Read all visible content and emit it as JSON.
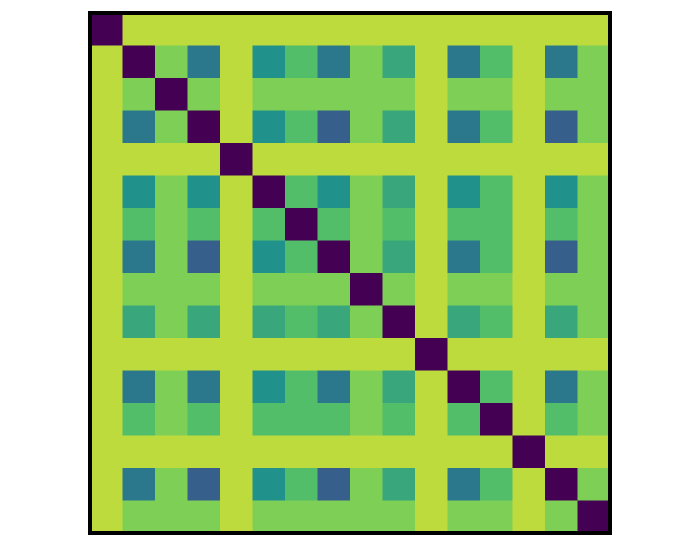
{
  "chart_data": {
    "type": "heatmap",
    "zlim": [
      0,
      1
    ],
    "colormap": [
      "#440154",
      "#3b528b",
      "#21918c",
      "#5ec962",
      "#fde725"
    ],
    "matrix": [
      [
        0,
        0.9,
        0.9,
        0.9,
        0.9,
        0.9,
        0.9,
        0.9,
        0.9,
        0.9,
        0.9,
        0.9,
        0.9,
        0.9,
        0.9,
        0.9
      ],
      [
        0.9,
        0,
        0.8,
        0.4,
        0.9,
        0.5,
        0.7,
        0.4,
        0.8,
        0.6,
        0.9,
        0.4,
        0.7,
        0.9,
        0.4,
        0.8
      ],
      [
        0.9,
        0.8,
        0,
        0.8,
        0.9,
        0.8,
        0.8,
        0.8,
        0.8,
        0.8,
        0.9,
        0.8,
        0.8,
        0.9,
        0.8,
        0.8
      ],
      [
        0.9,
        0.4,
        0.8,
        0,
        0.9,
        0.5,
        0.7,
        0.3,
        0.8,
        0.6,
        0.9,
        0.4,
        0.7,
        0.9,
        0.3,
        0.8
      ],
      [
        0.9,
        0.9,
        0.9,
        0.9,
        0,
        0.9,
        0.9,
        0.9,
        0.9,
        0.9,
        0.9,
        0.9,
        0.9,
        0.9,
        0.9,
        0.9
      ],
      [
        0.9,
        0.5,
        0.8,
        0.5,
        0.9,
        0,
        0.7,
        0.5,
        0.8,
        0.6,
        0.9,
        0.5,
        0.7,
        0.9,
        0.5,
        0.8
      ],
      [
        0.9,
        0.7,
        0.8,
        0.7,
        0.9,
        0.7,
        0,
        0.7,
        0.8,
        0.7,
        0.9,
        0.7,
        0.7,
        0.9,
        0.7,
        0.8
      ],
      [
        0.9,
        0.4,
        0.8,
        0.3,
        0.9,
        0.5,
        0.7,
        0,
        0.8,
        0.6,
        0.9,
        0.4,
        0.7,
        0.9,
        0.3,
        0.8
      ],
      [
        0.9,
        0.8,
        0.8,
        0.8,
        0.9,
        0.8,
        0.8,
        0.8,
        0,
        0.8,
        0.9,
        0.8,
        0.8,
        0.9,
        0.8,
        0.8
      ],
      [
        0.9,
        0.6,
        0.8,
        0.6,
        0.9,
        0.6,
        0.7,
        0.6,
        0.8,
        0,
        0.9,
        0.6,
        0.7,
        0.9,
        0.6,
        0.8
      ],
      [
        0.9,
        0.9,
        0.9,
        0.9,
        0.9,
        0.9,
        0.9,
        0.9,
        0.9,
        0.9,
        0,
        0.9,
        0.9,
        0.9,
        0.9,
        0.9
      ],
      [
        0.9,
        0.4,
        0.8,
        0.4,
        0.9,
        0.5,
        0.7,
        0.4,
        0.8,
        0.6,
        0.9,
        0,
        0.7,
        0.9,
        0.4,
        0.8
      ],
      [
        0.9,
        0.7,
        0.8,
        0.7,
        0.9,
        0.7,
        0.7,
        0.7,
        0.8,
        0.7,
        0.9,
        0.7,
        0,
        0.9,
        0.7,
        0.8
      ],
      [
        0.9,
        0.9,
        0.9,
        0.9,
        0.9,
        0.9,
        0.9,
        0.9,
        0.9,
        0.9,
        0.9,
        0.9,
        0.9,
        0,
        0.9,
        0.9
      ],
      [
        0.9,
        0.4,
        0.8,
        0.3,
        0.9,
        0.5,
        0.7,
        0.3,
        0.8,
        0.6,
        0.9,
        0.4,
        0.7,
        0.9,
        0,
        0.8
      ],
      [
        0.9,
        0.8,
        0.8,
        0.8,
        0.9,
        0.8,
        0.8,
        0.8,
        0.8,
        0.8,
        0.9,
        0.8,
        0.8,
        0.9,
        0.8,
        0
      ]
    ]
  }
}
